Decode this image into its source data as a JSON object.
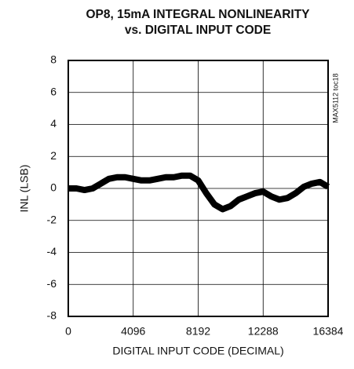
{
  "chart_data": {
    "type": "line",
    "title": [
      "OP8, 15mA INTEGRAL NONLINEARITY",
      "vs. DIGITAL INPUT CODE"
    ],
    "xlabel": "DIGITAL INPUT CODE (DECIMAL)",
    "ylabel": "INL (LSB)",
    "annotation": "MAX5112 toc18",
    "x": [
      0,
      512,
      1024,
      1536,
      2048,
      2560,
      3072,
      3584,
      4096,
      4608,
      5120,
      5632,
      6144,
      6656,
      7168,
      7680,
      8192,
      8704,
      9216,
      9728,
      10240,
      10752,
      11264,
      11776,
      12288,
      12800,
      13312,
      13824,
      14336,
      14848,
      15360,
      15872,
      16384
    ],
    "series": [
      {
        "color": "#000000",
        "values": [
          0,
          0,
          -0.1,
          0,
          0.3,
          0.6,
          0.7,
          0.7,
          0.6,
          0.5,
          0.5,
          0.6,
          0.7,
          0.7,
          0.8,
          0.8,
          0.5,
          -0.3,
          -1.0,
          -1.3,
          -1.1,
          -0.7,
          -0.5,
          -0.3,
          -0.2,
          -0.5,
          -0.7,
          -0.6,
          -0.3,
          0.1,
          0.3,
          0.4,
          0.1
        ]
      }
    ],
    "xlim": [
      0,
      16384
    ],
    "xticks": [
      0,
      4096,
      8192,
      12288,
      16384
    ],
    "ylim": [
      -8,
      8
    ],
    "yticks": [
      -8,
      -6,
      -4,
      -2,
      0,
      2,
      4,
      6,
      8
    ],
    "grid": true
  }
}
